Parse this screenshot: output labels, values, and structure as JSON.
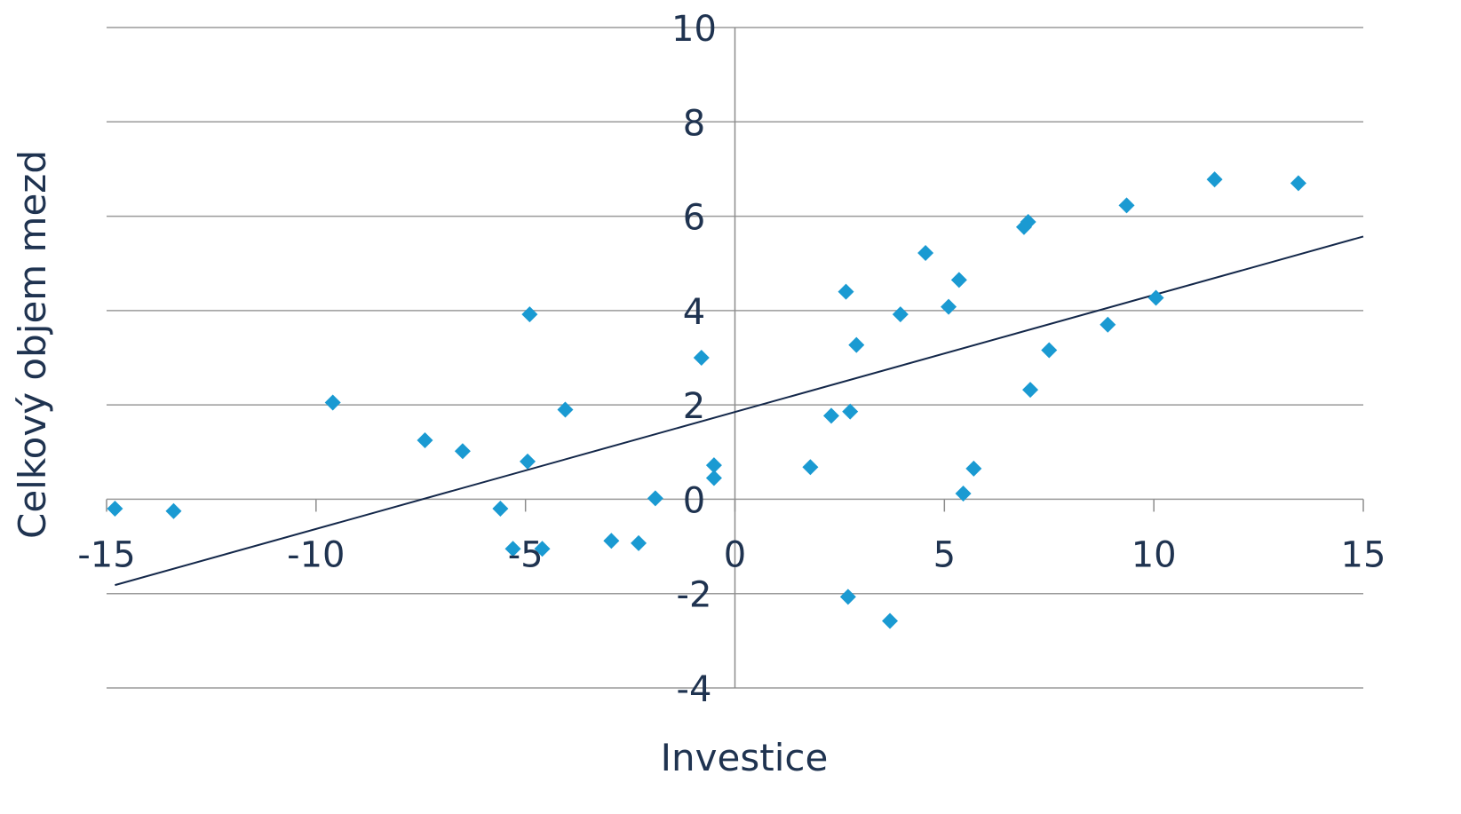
{
  "chart_data": {
    "type": "scatter",
    "xlabel": "Investice",
    "ylabel": "Celkový objem mezd",
    "xlim": [
      -15,
      15
    ],
    "ylim": [
      -4,
      10
    ],
    "x_ticks": [
      -15,
      -10,
      -5,
      0,
      5,
      10,
      15
    ],
    "y_ticks": [
      -4,
      -2,
      0,
      2,
      4,
      6,
      8,
      10
    ],
    "grid": "horizontal",
    "legend": "none",
    "colors": {
      "points": "#1a9ad2",
      "trend": "#14284a",
      "text": "#1f3350",
      "grid": "#9a9a9a"
    },
    "points": [
      {
        "x": -14.8,
        "y": -0.2
      },
      {
        "x": -13.4,
        "y": -0.25
      },
      {
        "x": -9.6,
        "y": 2.05
      },
      {
        "x": -7.4,
        "y": 1.25
      },
      {
        "x": -6.5,
        "y": 1.02
      },
      {
        "x": -5.6,
        "y": -0.2
      },
      {
        "x": -5.3,
        "y": -1.05
      },
      {
        "x": -4.95,
        "y": 0.8
      },
      {
        "x": -4.9,
        "y": 3.92
      },
      {
        "x": -4.6,
        "y": -1.05
      },
      {
        "x": -4.05,
        "y": 1.9
      },
      {
        "x": -2.95,
        "y": -0.88
      },
      {
        "x": -2.3,
        "y": -0.93
      },
      {
        "x": -1.9,
        "y": 0.02
      },
      {
        "x": -0.8,
        "y": 3.0
      },
      {
        "x": -0.5,
        "y": 0.72
      },
      {
        "x": -0.5,
        "y": 0.45
      },
      {
        "x": 1.8,
        "y": 0.68
      },
      {
        "x": 2.3,
        "y": 1.77
      },
      {
        "x": 2.65,
        "y": 4.4
      },
      {
        "x": 2.7,
        "y": -2.07
      },
      {
        "x": 2.75,
        "y": 1.86
      },
      {
        "x": 2.9,
        "y": 3.27
      },
      {
        "x": 3.7,
        "y": -2.58
      },
      {
        "x": 3.95,
        "y": 3.92
      },
      {
        "x": 4.55,
        "y": 5.22
      },
      {
        "x": 5.1,
        "y": 4.08
      },
      {
        "x": 5.35,
        "y": 4.65
      },
      {
        "x": 5.45,
        "y": 0.12
      },
      {
        "x": 5.7,
        "y": 0.65
      },
      {
        "x": 6.9,
        "y": 5.77
      },
      {
        "x": 7.0,
        "y": 5.88
      },
      {
        "x": 7.05,
        "y": 2.32
      },
      {
        "x": 7.5,
        "y": 3.16
      },
      {
        "x": 8.9,
        "y": 3.7
      },
      {
        "x": 9.35,
        "y": 6.23
      },
      {
        "x": 10.05,
        "y": 4.27
      },
      {
        "x": 11.45,
        "y": 6.78
      },
      {
        "x": 13.45,
        "y": 6.7
      }
    ],
    "trendline": {
      "x": [
        -14.8,
        15
      ],
      "y": [
        -1.82,
        5.57
      ]
    }
  }
}
